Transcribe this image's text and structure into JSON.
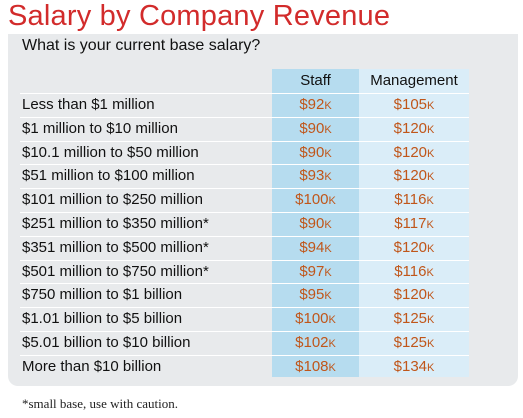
{
  "title": "Salary by Company Revenue",
  "subtitle": "What is your current base salary?",
  "footnote": "*small base, use with caution.",
  "colors": {
    "title": "#d22b2b",
    "value": "#c0561a",
    "staff_column": "#b6dcef",
    "management_column": "#daedf8",
    "panel": "#e8eaec"
  },
  "chart_data": {
    "type": "table",
    "title": "Salary by Company Revenue",
    "subtitle": "What is your current base salary?",
    "columns": [
      "Staff",
      "Management"
    ],
    "unit_suffix": "K",
    "rows": [
      {
        "label": "Less than $1 million",
        "staff": "$92",
        "management": "$105"
      },
      {
        "label": "$1 million to $10 million",
        "staff": "$90",
        "management": "$120"
      },
      {
        "label": "$10.1 million to $50 million",
        "staff": "$90",
        "management": "$120"
      },
      {
        "label": "$51 million to $100 million",
        "staff": "$93",
        "management": "$120"
      },
      {
        "label": "$101 million to $250 million",
        "staff": "$100",
        "management": "$116"
      },
      {
        "label": "$251 million to $350 million*",
        "staff": "$90",
        "management": "$117"
      },
      {
        "label": "$351 million to $500 million*",
        "staff": "$94",
        "management": "$120"
      },
      {
        "label": "$501 million to $750 million*",
        "staff": "$97",
        "management": "$116"
      },
      {
        "label": "$750 million to $1 billion",
        "staff": "$95",
        "management": "$120"
      },
      {
        "label": "$1.01 billion to $5 billion",
        "staff": "$100",
        "management": "$125"
      },
      {
        "label": "$5.01 billion to $10 billion",
        "staff": "$102",
        "management": "$125"
      },
      {
        "label": "More than $10 billion",
        "staff": "$108",
        "management": "$134"
      }
    ],
    "footnote": "*small base, use with caution."
  }
}
